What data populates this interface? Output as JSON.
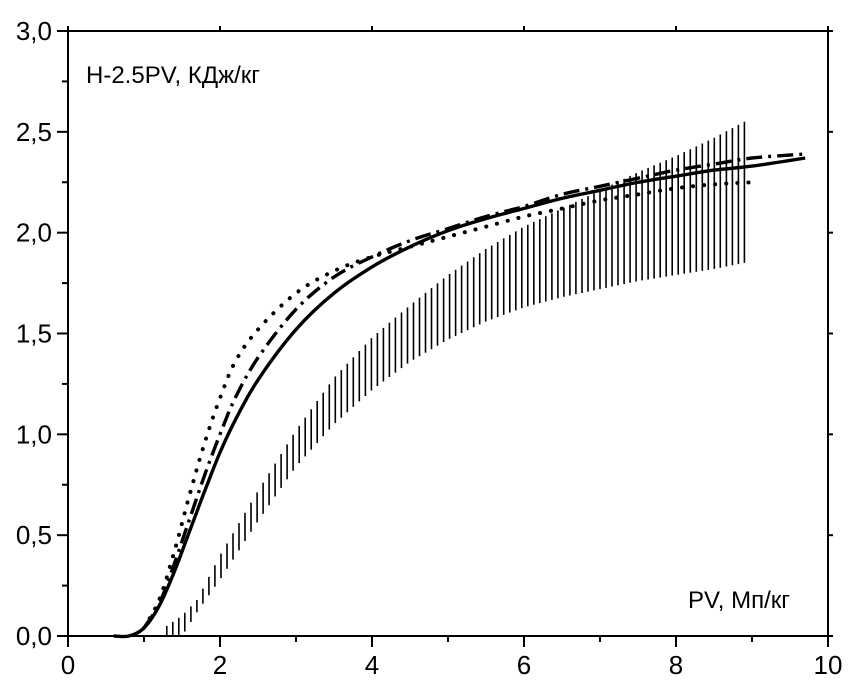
{
  "chart_data": {
    "type": "line",
    "title": "",
    "xlabel": "PV, Мп/кг",
    "ylabel": "H-2.5PV, КДж/кг",
    "xlim": [
      0,
      10
    ],
    "ylim": [
      0,
      3.0
    ],
    "x_ticks": [
      0,
      2,
      4,
      6,
      8,
      10
    ],
    "y_ticks": [
      0.0,
      0.5,
      1.0,
      1.5,
      2.0,
      2.5,
      3.0
    ],
    "x_tick_labels": [
      "0",
      "2",
      "4",
      "6",
      "8",
      "10"
    ],
    "y_tick_labels": [
      "0,0",
      "0,5",
      "1,0",
      "1,5",
      "2,0",
      "2,5",
      "3,0"
    ],
    "grid": false,
    "legend": "none",
    "series": [
      {
        "style": "solid",
        "x": [
          0.6,
          0.8,
          1.0,
          1.2,
          1.4,
          1.6,
          1.8,
          2.0,
          2.2,
          2.5,
          3.0,
          3.5,
          4.0,
          4.5,
          5.0,
          5.5,
          6.0,
          6.5,
          7.0,
          7.5,
          8.0,
          8.5,
          9.0,
          9.7
        ],
        "y": [
          0.0,
          0.0,
          0.04,
          0.15,
          0.32,
          0.52,
          0.72,
          0.91,
          1.07,
          1.27,
          1.52,
          1.7,
          1.83,
          1.93,
          2.01,
          2.07,
          2.12,
          2.17,
          2.21,
          2.25,
          2.28,
          2.31,
          2.33,
          2.37
        ]
      },
      {
        "style": "dash-dot",
        "x": [
          1.0,
          1.2,
          1.4,
          1.6,
          1.8,
          2.0,
          2.2,
          2.5,
          3.0,
          3.5,
          4.0,
          4.5,
          5.0,
          5.5,
          6.0,
          6.5,
          7.0,
          7.5,
          8.0,
          8.5,
          9.0,
          9.7
        ],
        "y": [
          0.04,
          0.16,
          0.36,
          0.58,
          0.8,
          1.0,
          1.18,
          1.38,
          1.62,
          1.78,
          1.88,
          1.96,
          2.02,
          2.08,
          2.13,
          2.19,
          2.23,
          2.27,
          2.31,
          2.34,
          2.37,
          2.39
        ]
      },
      {
        "style": "dotted",
        "x": [
          1.0,
          1.2,
          1.4,
          1.6,
          1.8,
          2.0,
          2.2,
          2.5,
          3.0,
          3.5,
          4.0,
          4.5,
          5.0,
          5.5,
          6.0,
          6.5,
          7.0,
          7.5,
          8.0,
          8.5,
          9.0
        ],
        "y": [
          0.04,
          0.18,
          0.42,
          0.7,
          0.96,
          1.18,
          1.36,
          1.52,
          1.7,
          1.81,
          1.88,
          1.93,
          1.98,
          2.03,
          2.08,
          2.12,
          2.16,
          2.19,
          2.22,
          2.24,
          2.25
        ]
      },
      {
        "style": "hatched-band",
        "x": [
          1.3,
          1.5,
          1.7,
          2.0,
          2.5,
          3.0,
          3.5,
          4.0,
          4.5,
          5.0,
          5.5,
          6.0,
          6.5,
          7.0,
          7.5,
          8.0,
          8.5,
          8.9
        ],
        "y_low": [
          0.0,
          0.0,
          0.12,
          0.28,
          0.57,
          0.84,
          1.05,
          1.22,
          1.36,
          1.47,
          1.56,
          1.63,
          1.68,
          1.72,
          1.76,
          1.79,
          1.82,
          1.85
        ],
        "y_high": [
          0.05,
          0.1,
          0.18,
          0.4,
          0.72,
          1.02,
          1.28,
          1.48,
          1.64,
          1.79,
          1.92,
          2.03,
          2.12,
          2.21,
          2.3,
          2.38,
          2.47,
          2.55
        ]
      }
    ]
  }
}
